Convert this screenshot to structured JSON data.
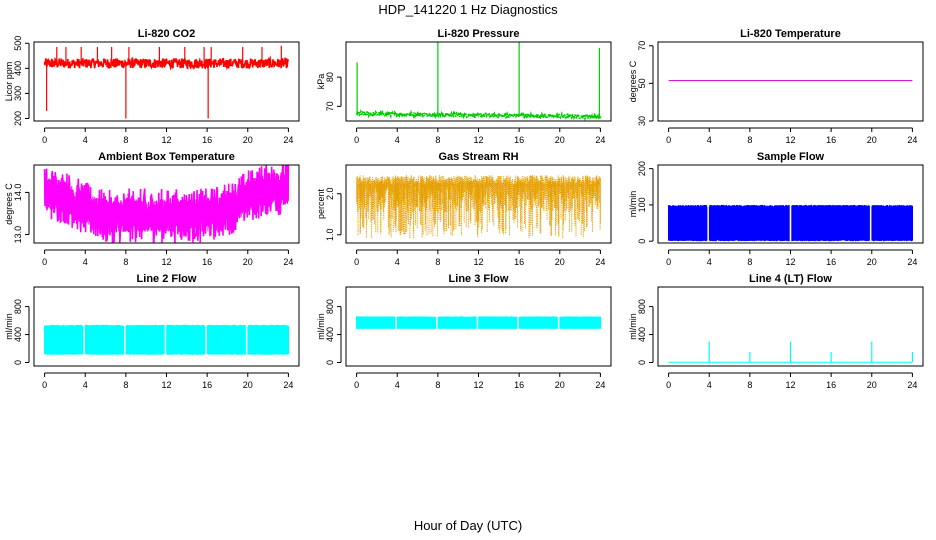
{
  "page": {
    "title": "HDP_141220  1 Hz Diagnostics",
    "xlabel": "Hour of Day (UTC)"
  },
  "chart_data": [
    {
      "type": "line",
      "title": "Li-820 CO2",
      "ylabel": "Licor ppm",
      "color": "#ff0000",
      "style": "noisy",
      "xlim": [
        0,
        24
      ],
      "xticks": [
        0,
        4,
        8,
        12,
        16,
        20,
        24
      ],
      "ylim": [
        190,
        505
      ],
      "yticks": [
        200,
        300,
        400,
        500
      ],
      "x": [
        0,
        24
      ],
      "baseline": [
        420,
        420
      ],
      "band": [
        400,
        440
      ],
      "spikes": [
        {
          "x": 0.2,
          "y": 230
        },
        {
          "x": 1.2,
          "y": 485
        },
        {
          "x": 2.1,
          "y": 485
        },
        {
          "x": 3.6,
          "y": 485
        },
        {
          "x": 5.2,
          "y": 485
        },
        {
          "x": 6.6,
          "y": 485
        },
        {
          "x": 8.0,
          "y": 200
        },
        {
          "x": 8.3,
          "y": 485
        },
        {
          "x": 11.3,
          "y": 485
        },
        {
          "x": 13.8,
          "y": 485
        },
        {
          "x": 15.7,
          "y": 485
        },
        {
          "x": 16.1,
          "y": 200
        },
        {
          "x": 16.4,
          "y": 485
        },
        {
          "x": 19.5,
          "y": 485
        },
        {
          "x": 21.4,
          "y": 485
        },
        {
          "x": 23.3,
          "y": 490
        }
      ]
    },
    {
      "type": "line",
      "title": "Li-820 Pressure",
      "ylabel": "kPa",
      "color": "#00cc00",
      "style": "spiky",
      "xlim": [
        0,
        24
      ],
      "xticks": [
        0,
        4,
        8,
        12,
        16,
        20,
        24
      ],
      "ylim": [
        65,
        92
      ],
      "yticks": [
        70,
        80
      ],
      "x": [
        0,
        24
      ],
      "baseline": [
        67.5,
        66.5
      ],
      "band": [
        66.5,
        68
      ],
      "spikes": [
        {
          "x": 0.05,
          "y": 85
        },
        {
          "x": 8.0,
          "y": 92
        },
        {
          "x": 16.0,
          "y": 92
        },
        {
          "x": 23.9,
          "y": 90
        }
      ]
    },
    {
      "type": "line",
      "title": "Li-820 Temperature",
      "ylabel": "degrees C",
      "color": "#cc00cc",
      "style": "flat",
      "xlim": [
        0,
        24
      ],
      "xticks": [
        0,
        4,
        8,
        12,
        16,
        20,
        24
      ],
      "ylim": [
        30,
        72
      ],
      "yticks": [
        30,
        50,
        70
      ],
      "x": [
        0,
        24
      ],
      "baseline": [
        51.5,
        51.5
      ],
      "band": [
        51.5,
        51.5
      ],
      "spikes": []
    },
    {
      "type": "line",
      "title": "Ambient Box Temperature",
      "ylabel": "degrees C",
      "color": "#ff00ff",
      "style": "noisy",
      "xlim": [
        0,
        24
      ],
      "xticks": [
        0,
        4,
        8,
        12,
        16,
        20,
        24
      ],
      "ylim": [
        12.8,
        14.65
      ],
      "yticks": [
        13.0,
        14.0
      ],
      "x": [
        0,
        2,
        4,
        6,
        8,
        10,
        12,
        14,
        16,
        18,
        20,
        22,
        24
      ],
      "baseline": [
        14.0,
        13.9,
        13.6,
        13.4,
        13.45,
        13.45,
        13.45,
        13.45,
        13.45,
        13.6,
        13.9,
        14.1,
        14.1
      ],
      "band": [
        13.2,
        14.5
      ],
      "spikes": []
    },
    {
      "type": "line",
      "title": "Gas Stream RH",
      "ylabel": "percent",
      "color": "#e69f00",
      "style": "dense",
      "xlim": [
        0,
        24
      ],
      "xticks": [
        0,
        4,
        8,
        12,
        16,
        20,
        24
      ],
      "ylim": [
        0.8,
        2.7
      ],
      "yticks": [
        1.0,
        2.0
      ],
      "x": [
        0,
        24
      ],
      "baseline": [
        2.2,
        2.2
      ],
      "band": [
        0.9,
        2.45
      ],
      "spikes": []
    },
    {
      "type": "line",
      "title": "Sample Flow",
      "ylabel": "ml/min",
      "color": "#0000ff",
      "style": "block",
      "xlim": [
        0,
        24
      ],
      "xticks": [
        0,
        4,
        8,
        12,
        16,
        20,
        24
      ],
      "ylim": [
        -5,
        210
      ],
      "yticks": [
        0,
        100,
        200
      ],
      "x": [
        0,
        24
      ],
      "baseline": [
        5,
        5
      ],
      "band": [
        0,
        100
      ],
      "gaps": [
        3.9,
        12.0,
        19.9
      ],
      "spikes": []
    },
    {
      "type": "line",
      "title": "Line 2 Flow",
      "ylabel": "ml/min",
      "color": "#00ffff",
      "style": "block",
      "xlim": [
        0,
        24
      ],
      "xticks": [
        0,
        4,
        8,
        12,
        16,
        20,
        24
      ],
      "ylim": [
        -50,
        1080
      ],
      "yticks": [
        0,
        400,
        800
      ],
      "x": [
        0,
        24
      ],
      "baseline": [
        120,
        120
      ],
      "band": [
        110,
        540
      ],
      "gaps": [
        3.9,
        7.9,
        11.9,
        15.9,
        19.9
      ],
      "spikes": []
    },
    {
      "type": "line",
      "title": "Line 3 Flow",
      "ylabel": "ml/min",
      "color": "#00ffff",
      "style": "block",
      "xlim": [
        0,
        24
      ],
      "xticks": [
        0,
        4,
        8,
        12,
        16,
        20,
        24
      ],
      "ylim": [
        -50,
        1080
      ],
      "yticks": [
        0,
        400,
        800
      ],
      "x": [
        0,
        24
      ],
      "baseline": [
        500,
        500
      ],
      "band": [
        480,
        660
      ],
      "gaps": [
        3.9,
        7.9,
        11.9,
        15.9,
        19.9
      ],
      "spikes": []
    },
    {
      "type": "line",
      "title": "Line 4 (LT) Flow",
      "ylabel": "ml/min",
      "color": "#00ffff",
      "style": "flat",
      "xlim": [
        0,
        24
      ],
      "xticks": [
        0,
        4,
        8,
        12,
        16,
        20,
        24
      ],
      "ylim": [
        -50,
        1080
      ],
      "yticks": [
        0,
        400,
        800
      ],
      "x": [
        0,
        24
      ],
      "baseline": [
        5,
        5
      ],
      "band": [
        5,
        5
      ],
      "spikes": [
        {
          "x": 4.0,
          "y": 300
        },
        {
          "x": 8.0,
          "y": 150
        },
        {
          "x": 12.0,
          "y": 300
        },
        {
          "x": 16.0,
          "y": 150
        },
        {
          "x": 20.0,
          "y": 300
        },
        {
          "x": 24.0,
          "y": 150
        }
      ]
    }
  ]
}
